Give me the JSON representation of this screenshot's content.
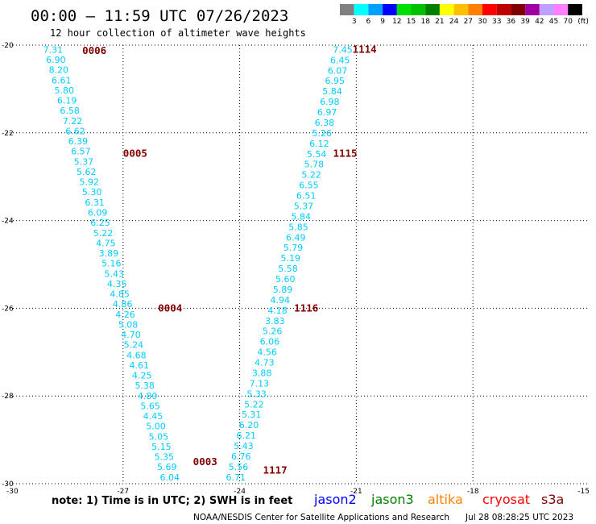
{
  "header": {
    "title": "00:00 – 11:59 UTC 07/26/2023",
    "subtitle": "12 hour collection of altimeter wave heights"
  },
  "color_scale": {
    "labels": [
      "3",
      "6",
      "9",
      "12",
      "15",
      "18",
      "21",
      "24",
      "27",
      "30",
      "33",
      "36",
      "39",
      "42",
      "45",
      "70"
    ],
    "unit": "(ft)",
    "colors": [
      "#808080",
      "#00ffff",
      "#00a0ff",
      "#0000ff",
      "#00e000",
      "#00c000",
      "#008000",
      "#ffff00",
      "#ffc000",
      "#ff8000",
      "#ff0000",
      "#c00000",
      "#800000",
      "#a000a0",
      "#c0a0ff",
      "#ff80ff",
      "#000000"
    ]
  },
  "chart_data": {
    "type": "scatter",
    "xlim": [
      -30,
      -15
    ],
    "ylim": [
      -30,
      -20
    ],
    "x_ticks": [
      "-30",
      "-27",
      "-24",
      "-21",
      "-18",
      "-15"
    ],
    "y_ticks": [
      "-20",
      "-22",
      "-24",
      "-26",
      "-28",
      "-30"
    ],
    "grid": true,
    "tracks": [
      {
        "side": "left",
        "x_start": -28.8,
        "x_end": -25.8,
        "y_start": -20.1,
        "y_end": -29.85,
        "values": [
          "7.31",
          "6.90",
          "8.20",
          "6.61",
          "5.80",
          "6.19",
          "6.58",
          "7.22",
          "6.62",
          "6.39",
          "6.57",
          "5.37",
          "5.62",
          "5.92",
          "5.30",
          "6.31",
          "6.09",
          "6.25",
          "5.22",
          "4.75",
          "3.89",
          "5.16",
          "5.43",
          "4.35",
          "4.85",
          "4.86",
          "4.26",
          "5.08",
          "4.70",
          "5.24",
          "4.68",
          "4.61",
          "4.25",
          "5.38",
          "4.80",
          "5.65",
          "4.45",
          "5.00",
          "5.05",
          "5.15",
          "5.35",
          "5.69",
          "6.04"
        ]
      },
      {
        "side": "right",
        "x_start": -21.35,
        "x_end": -24.1,
        "y_start": -20.1,
        "y_end": -29.85,
        "values": [
          "7.45",
          "6.45",
          "6.07",
          "6.95",
          "5.84",
          "6.98",
          "6.97",
          "6.38",
          "5.26",
          "6.12",
          "5.54",
          "5.78",
          "5.22",
          "6.55",
          "6.51",
          "5.37",
          "5.84",
          "5.85",
          "6.49",
          "5.79",
          "5.19",
          "5.58",
          "5.60",
          "5.89",
          "4.94",
          "4.18",
          "3.83",
          "5.26",
          "6.06",
          "4.56",
          "4.73",
          "3.88",
          "7.13",
          "5.33",
          "5.22",
          "5.31",
          "6.20",
          "6.21",
          "5.43",
          "6.76",
          "5.56",
          "6.71"
        ]
      }
    ],
    "pass_labels": [
      {
        "text": "0006",
        "x": -28.05,
        "y": -20.13
      },
      {
        "text": "0005",
        "x": -27.0,
        "y": -22.47
      },
      {
        "text": "0004",
        "x": -26.1,
        "y": -26.0
      },
      {
        "text": "0003",
        "x": -25.2,
        "y": -29.5
      },
      {
        "text": "1114",
        "x": -21.1,
        "y": -20.1
      },
      {
        "text": "1115",
        "x": -21.6,
        "y": -22.47
      },
      {
        "text": "1116",
        "x": -22.6,
        "y": -26.0
      },
      {
        "text": "1117",
        "x": -23.4,
        "y": -29.7
      }
    ],
    "value_color": "#00ccff",
    "pass_color": "#800000"
  },
  "footer": {
    "note": "note: 1) Time is in UTC; 2) SWH is in feet",
    "legend": [
      {
        "name": "jason2",
        "color": "#0000ff"
      },
      {
        "name": "jason3",
        "color": "#008000"
      },
      {
        "name": "altika",
        "color": "#ff8000"
      },
      {
        "name": "cryosat",
        "color": "#ff0000"
      },
      {
        "name": "s3a",
        "color": "#800000"
      }
    ],
    "credit_left": "NOAA/NESDIS Center for Satellite Applications and Research",
    "credit_right": "Jul 28 08:28:25 UTC 2023"
  }
}
